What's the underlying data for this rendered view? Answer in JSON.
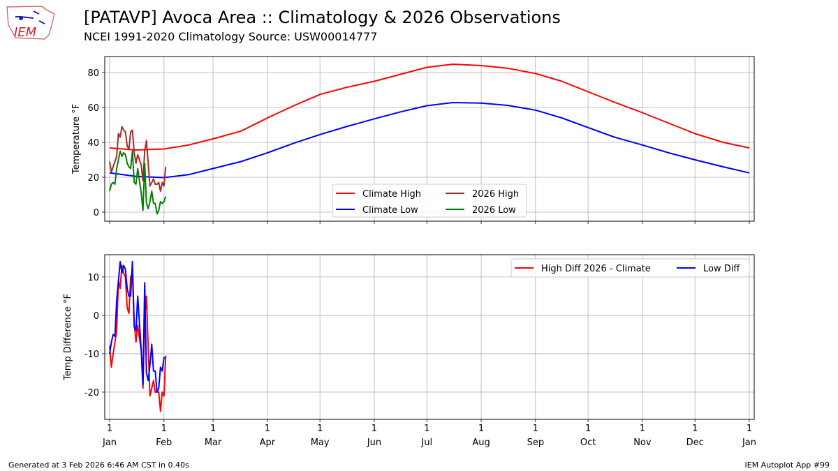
{
  "header": {
    "title": "[PATAVP] Avoca Area :: Climatology & 2026 Observations",
    "subtitle": "NCEI 1991-2020 Climatology Source: USW00014777",
    "logo_text": "IEM"
  },
  "footer": {
    "left": "Generated at 3 Feb 2026 6:46 AM CST in 0.40s",
    "right": "IEM Autoplot App #99"
  },
  "chart_data": [
    {
      "type": "line",
      "ylabel": "Temperature °F",
      "ylim": [
        -5.2,
        89.2
      ],
      "xlim": [
        -2.8,
        367.8
      ],
      "yticks": [
        0,
        20,
        40,
        60,
        80
      ],
      "grid": true,
      "legend_placement": "lower-center",
      "legend_columns": 2,
      "series": [
        {
          "name": "Climate High",
          "color": "#ff0000",
          "x": [
            0,
            15,
            31,
            45,
            59,
            75,
            90,
            105,
            120,
            135,
            151,
            166,
            181,
            196,
            212,
            227,
            243,
            258,
            273,
            288,
            304,
            319,
            334,
            350,
            365
          ],
          "y": [
            36.8,
            35.6,
            36.2,
            38.5,
            42,
            46.5,
            54,
            61,
            67.5,
            71.5,
            75,
            79,
            83,
            84.8,
            84,
            82.5,
            79.5,
            75,
            69,
            63,
            57,
            51,
            45,
            40,
            36.8
          ]
        },
        {
          "name": "Climate Low",
          "color": "#0000ff",
          "x": [
            0,
            15,
            31,
            45,
            59,
            75,
            90,
            105,
            120,
            135,
            151,
            166,
            181,
            196,
            212,
            227,
            243,
            258,
            273,
            288,
            304,
            319,
            334,
            350,
            365
          ],
          "y": [
            22.5,
            20.5,
            19.8,
            21.5,
            25,
            29,
            34,
            39.5,
            44.5,
            49,
            53.5,
            57.5,
            61,
            62.8,
            62.5,
            61.2,
            58.5,
            54,
            48.5,
            43,
            38.5,
            34,
            30,
            26,
            22.5
          ]
        },
        {
          "name": "2026 High",
          "color": "#a52a2a",
          "x": [
            0,
            1,
            2,
            3,
            4,
            5,
            6,
            7,
            8,
            9,
            10,
            11,
            12,
            13,
            14,
            15,
            16,
            17,
            18,
            19,
            20,
            21,
            22,
            23,
            24,
            25,
            26,
            27,
            28,
            29,
            30,
            31,
            32
          ],
          "y": [
            29,
            23,
            26,
            29,
            32,
            45,
            43,
            49,
            47,
            46,
            38,
            36,
            46,
            47,
            34,
            28,
            33,
            30,
            27,
            18,
            35,
            41,
            28,
            15,
            17,
            19,
            16,
            16,
            17,
            12,
            17,
            15,
            26
          ]
        },
        {
          "name": "2026 Low",
          "color": "#008000",
          "x": [
            0,
            1,
            2,
            3,
            4,
            5,
            6,
            7,
            8,
            9,
            10,
            11,
            12,
            13,
            14,
            15,
            16,
            17,
            18,
            19,
            20,
            21,
            22,
            23,
            24,
            25,
            26,
            27,
            28,
            29,
            30,
            31,
            32
          ],
          "y": [
            12,
            16,
            17,
            16,
            25,
            30,
            35,
            32,
            34,
            33,
            28,
            26,
            25,
            35,
            17,
            16,
            25,
            18,
            11,
            1,
            28,
            5,
            2,
            6,
            12,
            5,
            5,
            -1,
            1,
            6,
            5,
            6,
            9
          ]
        }
      ]
    },
    {
      "type": "line",
      "ylabel": "Temp Difference °F",
      "ylim": [
        -27.1,
        15.8
      ],
      "xlim": [
        -2.8,
        367.8
      ],
      "yticks": [
        -20,
        -10,
        0,
        10
      ],
      "grid": true,
      "legend_placement": "upper-right",
      "legend_columns": 2,
      "series": [
        {
          "name": "High Diff 2026 - Climate",
          "color": "#ff0000",
          "x": [
            0,
            1,
            2,
            3,
            4,
            5,
            6,
            7,
            8,
            9,
            10,
            11,
            12,
            13,
            14,
            15,
            16,
            17,
            18,
            19,
            20,
            21,
            22,
            23,
            24,
            25,
            26,
            27,
            28,
            29,
            30,
            31,
            32
          ],
          "y": [
            -8,
            -13.5,
            -10,
            -7,
            -4,
            9,
            7,
            13,
            11,
            10,
            2,
            0.5,
            10,
            11,
            -2,
            -7,
            -2.5,
            -6,
            -9,
            -19,
            -1,
            5,
            -8,
            -21,
            -19,
            -17,
            -20,
            -20,
            -20,
            -25,
            -20,
            -21,
            -10.5
          ]
        },
        {
          "name": "Low Diff",
          "color": "#0000ff",
          "x": [
            0,
            1,
            2,
            3,
            4,
            5,
            6,
            7,
            8,
            9,
            10,
            11,
            12,
            13,
            14,
            15,
            16,
            17,
            18,
            19,
            20,
            21,
            22,
            23,
            24,
            25,
            26,
            27,
            28,
            29,
            30,
            31,
            32
          ],
          "y": [
            -10,
            -7,
            -5,
            -5.5,
            4,
            9,
            14,
            11,
            13,
            12,
            7,
            5,
            5,
            14,
            -3,
            -4,
            5,
            -2,
            -9,
            -18,
            8.5,
            -15,
            -17,
            -13,
            -7.5,
            -14.5,
            -14.5,
            -20,
            -19,
            -13.5,
            -14.5,
            -11,
            -11
          ]
        }
      ]
    }
  ],
  "x_ticks": [
    {
      "day": 0,
      "label": "1\nJan"
    },
    {
      "day": 31,
      "label": "1\nFeb"
    },
    {
      "day": 59,
      "label": "1\nMar"
    },
    {
      "day": 90,
      "label": "1\nApr"
    },
    {
      "day": 120,
      "label": "1\nMay"
    },
    {
      "day": 151,
      "label": "1\nJun"
    },
    {
      "day": 181,
      "label": "1\nJul"
    },
    {
      "day": 212,
      "label": "1\nAug"
    },
    {
      "day": 243,
      "label": "1\nSep"
    },
    {
      "day": 273,
      "label": "1\nOct"
    },
    {
      "day": 304,
      "label": "1\nNov"
    },
    {
      "day": 334,
      "label": "1\nDec"
    },
    {
      "day": 365,
      "label": "1\nJan"
    }
  ]
}
